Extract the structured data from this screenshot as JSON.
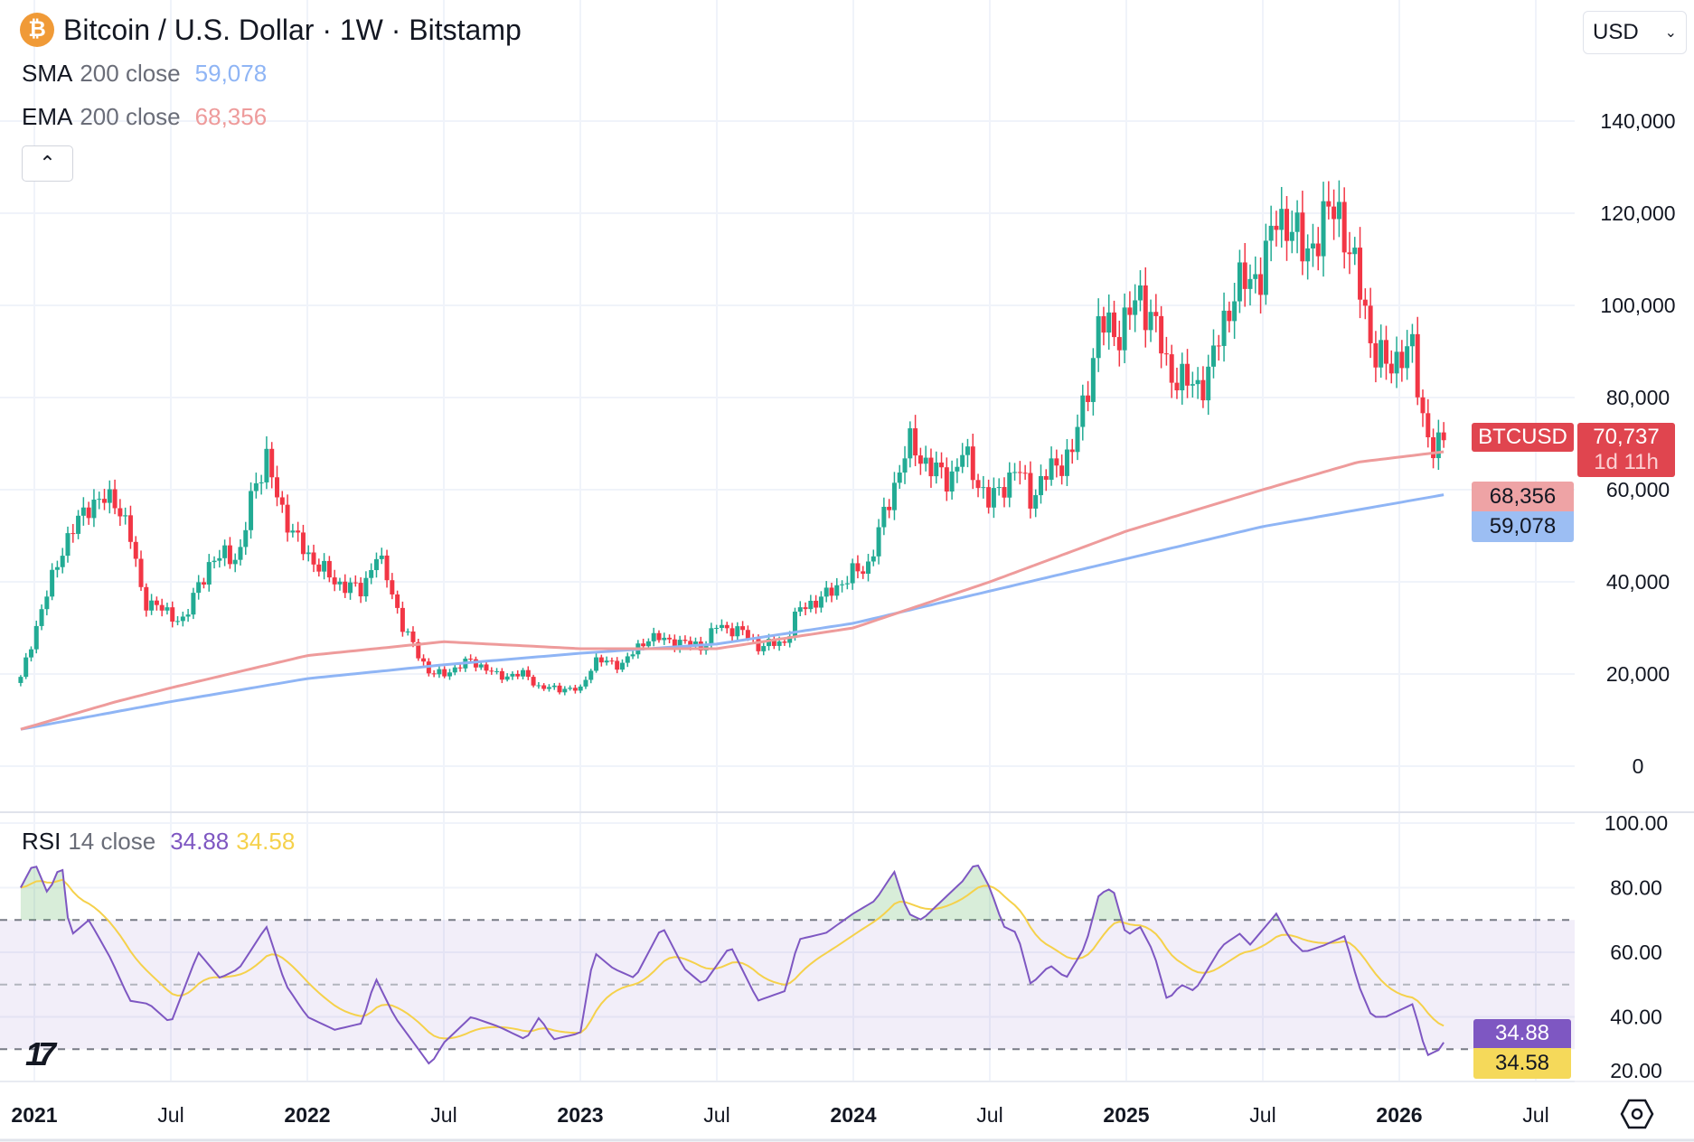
{
  "header": {
    "title": "Bitcoin / U.S. Dollar · 1W · Bitstamp",
    "currency": "USD",
    "collapse_icon": "chevron-up-icon"
  },
  "indicators": {
    "sma": {
      "name": "SMA",
      "params": "200 close",
      "value": "59,078",
      "color": "#8fb5f5"
    },
    "ema": {
      "name": "EMA",
      "params": "200 close",
      "value": "68,356",
      "color": "#ee9b9b"
    },
    "rsi": {
      "name": "RSI",
      "params": "14 close",
      "value": "34.88",
      "signal": "34.58",
      "color": "#7e57c2",
      "signal_color": "#f5d14b"
    }
  },
  "price_tags": {
    "symbol": "BTCUSD",
    "last": "70,737",
    "countdown": "1d 11h",
    "ema": "68,356",
    "sma": "59,078"
  },
  "chart_data": {
    "type": "candlestick",
    "interval": "1W",
    "price_axis": {
      "ticks": [
        0,
        20000,
        40000,
        60000,
        80000,
        100000,
        120000,
        140000
      ],
      "labels": [
        "0",
        "20,000",
        "40,000",
        "60,000",
        "80,000",
        "100,000",
        "120,000",
        "140,000"
      ],
      "range": [
        0,
        140000
      ]
    },
    "rsi_axis": {
      "ticks": [
        20,
        40,
        60,
        80,
        100
      ],
      "labels": [
        "20.00",
        "40.00",
        "60.00",
        "80.00",
        "100.00"
      ],
      "bands": [
        30,
        50,
        70
      ]
    },
    "time_axis": {
      "ticks": [
        2021,
        2021.5,
        2022,
        2022.5,
        2023,
        2023.5,
        2024,
        2024.5,
        2025,
        2025.5,
        2026,
        2026.5
      ],
      "labels": [
        "2021",
        "Jul",
        "2022",
        "Jul",
        "2023",
        "Jul",
        "2024",
        "Jul",
        "2025",
        "Jul",
        "2026",
        "Jul"
      ],
      "range": [
        2020.9,
        2026.7
      ]
    },
    "close_anchors": [
      [
        2020.95,
        19000
      ],
      [
        2021.0,
        29000
      ],
      [
        2021.1,
        47000
      ],
      [
        2021.2,
        57000
      ],
      [
        2021.3,
        58000
      ],
      [
        2021.35,
        50000
      ],
      [
        2021.4,
        36000
      ],
      [
        2021.5,
        33000
      ],
      [
        2021.55,
        31000
      ],
      [
        2021.6,
        40000
      ],
      [
        2021.7,
        47000
      ],
      [
        2021.75,
        44000
      ],
      [
        2021.8,
        61000
      ],
      [
        2021.85,
        66000
      ],
      [
        2021.9,
        57000
      ],
      [
        2021.95,
        50000
      ],
      [
        2022.0,
        46000
      ],
      [
        2022.1,
        40000
      ],
      [
        2022.2,
        38000
      ],
      [
        2022.25,
        46000
      ],
      [
        2022.3,
        40000
      ],
      [
        2022.35,
        30000
      ],
      [
        2022.45,
        20000
      ],
      [
        2022.5,
        20000
      ],
      [
        2022.6,
        23000
      ],
      [
        2022.7,
        19500
      ],
      [
        2022.8,
        20000
      ],
      [
        2022.85,
        17000
      ],
      [
        2022.95,
        16800
      ],
      [
        2023.0,
        16500
      ],
      [
        2023.05,
        23000
      ],
      [
        2023.15,
        22000
      ],
      [
        2023.25,
        28000
      ],
      [
        2023.35,
        27000
      ],
      [
        2023.45,
        26000
      ],
      [
        2023.5,
        30500
      ],
      [
        2023.6,
        29000
      ],
      [
        2023.65,
        26000
      ],
      [
        2023.75,
        27000
      ],
      [
        2023.8,
        34000
      ],
      [
        2023.9,
        37000
      ],
      [
        2024.0,
        42000
      ],
      [
        2024.05,
        43000
      ],
      [
        2024.1,
        52000
      ],
      [
        2024.2,
        70000
      ],
      [
        2024.3,
        64000
      ],
      [
        2024.35,
        62000
      ],
      [
        2024.4,
        68000
      ],
      [
        2024.5,
        57000
      ],
      [
        2024.6,
        65000
      ],
      [
        2024.65,
        58000
      ],
      [
        2024.7,
        63000
      ],
      [
        2024.8,
        68000
      ],
      [
        2024.85,
        80000
      ],
      [
        2024.9,
        96000
      ],
      [
        2024.97,
        94000
      ],
      [
        2025.05,
        102000
      ],
      [
        2025.1,
        97000
      ],
      [
        2025.15,
        86000
      ],
      [
        2025.25,
        82000
      ],
      [
        2025.3,
        85000
      ],
      [
        2025.35,
        95000
      ],
      [
        2025.4,
        104000
      ],
      [
        2025.45,
        105000
      ],
      [
        2025.5,
        108000
      ],
      [
        2025.55,
        119000
      ],
      [
        2025.6,
        118000
      ],
      [
        2025.65,
        111000
      ],
      [
        2025.7,
        115000
      ],
      [
        2025.77,
        123000
      ],
      [
        2025.82,
        110000
      ],
      [
        2025.87,
        102000
      ],
      [
        2025.9,
        90000
      ],
      [
        2025.95,
        87000
      ],
      [
        2026.0,
        89000
      ],
      [
        2026.05,
        90000
      ],
      [
        2026.08,
        78000
      ],
      [
        2026.12,
        68000
      ],
      [
        2026.15,
        69000
      ],
      [
        2026.18,
        70737
      ]
    ],
    "sma_anchors": [
      [
        2020.95,
        8000
      ],
      [
        2021.5,
        14000
      ],
      [
        2022.0,
        19000
      ],
      [
        2022.5,
        22000
      ],
      [
        2023.0,
        24500
      ],
      [
        2023.5,
        26500
      ],
      [
        2024.0,
        31000
      ],
      [
        2024.5,
        38000
      ],
      [
        2025.0,
        45000
      ],
      [
        2025.5,
        52000
      ],
      [
        2026.18,
        59078
      ]
    ],
    "ema_anchors": [
      [
        2020.95,
        8000
      ],
      [
        2021.3,
        14000
      ],
      [
        2021.5,
        17000
      ],
      [
        2022.0,
        24000
      ],
      [
        2022.5,
        27000
      ],
      [
        2023.0,
        25500
      ],
      [
        2023.5,
        25500
      ],
      [
        2024.0,
        30000
      ],
      [
        2024.5,
        40000
      ],
      [
        2025.0,
        51000
      ],
      [
        2025.5,
        60000
      ],
      [
        2025.85,
        66000
      ],
      [
        2026.18,
        68356
      ]
    ],
    "rsi_anchors": [
      [
        2020.95,
        80
      ],
      [
        2021.0,
        88
      ],
      [
        2021.05,
        78
      ],
      [
        2021.1,
        88
      ],
      [
        2021.13,
        65
      ],
      [
        2021.2,
        70
      ],
      [
        2021.28,
        58
      ],
      [
        2021.35,
        45
      ],
      [
        2021.42,
        44
      ],
      [
        2021.5,
        38
      ],
      [
        2021.6,
        60
      ],
      [
        2021.68,
        52
      ],
      [
        2021.75,
        55
      ],
      [
        2021.85,
        68
      ],
      [
        2021.92,
        50
      ],
      [
        2022.0,
        40
      ],
      [
        2022.1,
        36
      ],
      [
        2022.2,
        38
      ],
      [
        2022.25,
        52
      ],
      [
        2022.32,
        40
      ],
      [
        2022.45,
        25
      ],
      [
        2022.5,
        32
      ],
      [
        2022.6,
        40
      ],
      [
        2022.7,
        37
      ],
      [
        2022.8,
        33
      ],
      [
        2022.85,
        40
      ],
      [
        2022.9,
        33
      ],
      [
        2023.0,
        35
      ],
      [
        2023.05,
        60
      ],
      [
        2023.12,
        55
      ],
      [
        2023.2,
        52
      ],
      [
        2023.3,
        68
      ],
      [
        2023.38,
        55
      ],
      [
        2023.45,
        50
      ],
      [
        2023.55,
        62
      ],
      [
        2023.65,
        45
      ],
      [
        2023.75,
        48
      ],
      [
        2023.8,
        64
      ],
      [
        2023.9,
        66
      ],
      [
        2024.0,
        72
      ],
      [
        2024.08,
        76
      ],
      [
        2024.15,
        85
      ],
      [
        2024.2,
        72
      ],
      [
        2024.25,
        70
      ],
      [
        2024.3,
        74
      ],
      [
        2024.4,
        82
      ],
      [
        2024.45,
        88
      ],
      [
        2024.5,
        80
      ],
      [
        2024.55,
        68
      ],
      [
        2024.6,
        66
      ],
      [
        2024.65,
        50
      ],
      [
        2024.72,
        56
      ],
      [
        2024.78,
        52
      ],
      [
        2024.85,
        62
      ],
      [
        2024.9,
        78
      ],
      [
        2024.95,
        80
      ],
      [
        2025.0,
        65
      ],
      [
        2025.05,
        68
      ],
      [
        2025.1,
        60
      ],
      [
        2025.15,
        45
      ],
      [
        2025.2,
        50
      ],
      [
        2025.25,
        48
      ],
      [
        2025.35,
        62
      ],
      [
        2025.42,
        66
      ],
      [
        2025.45,
        62
      ],
      [
        2025.55,
        72
      ],
      [
        2025.6,
        64
      ],
      [
        2025.65,
        60
      ],
      [
        2025.72,
        62
      ],
      [
        2025.8,
        65
      ],
      [
        2025.85,
        50
      ],
      [
        2025.9,
        40
      ],
      [
        2025.95,
        40
      ],
      [
        2026.0,
        42
      ],
      [
        2026.05,
        44
      ],
      [
        2026.1,
        28
      ],
      [
        2026.15,
        30
      ],
      [
        2026.18,
        34.88
      ]
    ]
  }
}
